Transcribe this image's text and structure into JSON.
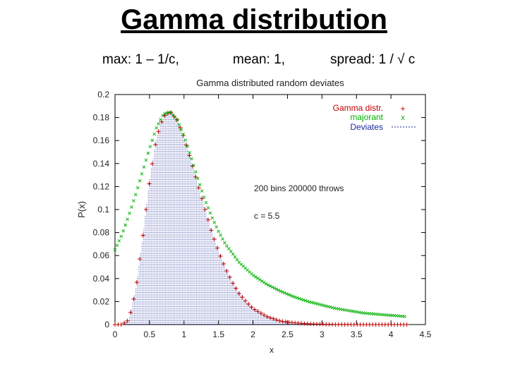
{
  "slide": {
    "title": "Gamma distribution",
    "subtitle_max": "max:  1 – 1/c,",
    "subtitle_mean": "mean:  1,",
    "subtitle_spread": "spread:  1 / √ c"
  },
  "chart_data": {
    "type": "line",
    "title": "Gamma distributed random deviates",
    "xlabel": "x",
    "ylabel": "P(x)",
    "xlim": [
      0,
      4.5
    ],
    "ylim": [
      0,
      0.2
    ],
    "x_ticks": [
      0,
      0.5,
      1,
      1.5,
      2,
      2.5,
      3,
      3.5,
      4,
      4.5
    ],
    "x_tick_labels": [
      "0",
      "0.5",
      "1",
      "1.5",
      "2",
      "2.5",
      "3",
      "3.5",
      "4",
      "4.5"
    ],
    "y_ticks": [
      0,
      0.02,
      0.04,
      0.06,
      0.08,
      0.1,
      0.12,
      0.14,
      0.16,
      0.18,
      0.2
    ],
    "y_tick_labels": [
      "0",
      "0.02",
      "0.04",
      "0.06",
      "0.08",
      "0.1",
      "0.12",
      "0.14",
      "0.16",
      "0.18",
      "0.2"
    ],
    "grid": false,
    "legend_position": "top-right",
    "annotations": [
      "200 bins 200000 throws",
      "c = 5.5"
    ],
    "series": [
      {
        "name": "Gamma distr.",
        "marker": "+",
        "color": "#c00000",
        "x": [
          0.1,
          0.2,
          0.3,
          0.4,
          0.5,
          0.6,
          0.7,
          0.8,
          0.9,
          1.0,
          1.1,
          1.2,
          1.3,
          1.4,
          1.5,
          1.6,
          1.7,
          1.8,
          1.9,
          2.0,
          2.2,
          2.4,
          2.6,
          2.8,
          3.0,
          3.2,
          3.5,
          4.0,
          4.2
        ],
        "y": [
          0.0,
          0.004,
          0.03,
          0.075,
          0.125,
          0.162,
          0.181,
          0.185,
          0.178,
          0.163,
          0.143,
          0.122,
          0.101,
          0.081,
          0.064,
          0.049,
          0.037,
          0.027,
          0.02,
          0.014,
          0.007,
          0.003,
          0.0015,
          0.0007,
          0.0003,
          0.0001,
          0.0,
          0.0,
          0.0
        ]
      },
      {
        "name": "majorant",
        "marker": "x",
        "color": "#00b000",
        "x": [
          0.0,
          0.1,
          0.2,
          0.3,
          0.4,
          0.5,
          0.6,
          0.7,
          0.8,
          0.9,
          1.0,
          1.1,
          1.2,
          1.3,
          1.4,
          1.5,
          1.6,
          1.8,
          2.0,
          2.2,
          2.4,
          2.6,
          2.8,
          3.0,
          3.2,
          3.4,
          3.6,
          3.8,
          4.0,
          4.2
        ],
        "y": [
          0.065,
          0.078,
          0.095,
          0.113,
          0.133,
          0.153,
          0.171,
          0.183,
          0.185,
          0.178,
          0.164,
          0.146,
          0.127,
          0.109,
          0.094,
          0.081,
          0.07,
          0.054,
          0.043,
          0.035,
          0.029,
          0.024,
          0.02,
          0.017,
          0.014,
          0.012,
          0.01,
          0.009,
          0.008,
          0.007
        ]
      },
      {
        "name": "Deviates",
        "marker": "histogram",
        "color": "#1a2a9a"
      }
    ]
  }
}
